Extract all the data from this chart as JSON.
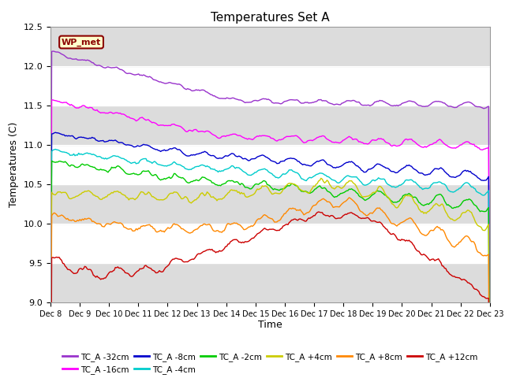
{
  "title": "Temperatures Set A",
  "xlabel": "Time",
  "ylabel": "Temperatures (C)",
  "ylim": [
    9.0,
    12.5
  ],
  "x_tick_labels": [
    "Dec 8",
    "Dec 9",
    "Dec 10",
    "Dec 11",
    "Dec 12",
    "Dec 13",
    "Dec 14",
    "Dec 15",
    "Dec 16",
    "Dec 17",
    "Dec 18",
    "Dec 19",
    "Dec 20",
    "Dec 21",
    "Dec 22",
    "Dec 23"
  ],
  "wp_met_label": "WP_met",
  "wp_met_color": "#8B0000",
  "wp_met_bg": "#FFFFCC",
  "series": [
    {
      "label": "TC_A -32cm",
      "color": "#9933CC"
    },
    {
      "label": "TC_A -16cm",
      "color": "#FF00FF"
    },
    {
      "label": "TC_A -8cm",
      "color": "#0000CC"
    },
    {
      "label": "TC_A -4cm",
      "color": "#00CCCC"
    },
    {
      "label": "TC_A -2cm",
      "color": "#00CC00"
    },
    {
      "label": "TC_A +4cm",
      "color": "#CCCC00"
    },
    {
      "label": "TC_A +8cm",
      "color": "#FF8800"
    },
    {
      "label": "TC_A +12cm",
      "color": "#CC0000"
    }
  ],
  "plot_bg": "#DCDCDC",
  "band_color_light": "#F0F0F0",
  "title_fontsize": 11,
  "tick_fontsize": 7,
  "label_fontsize": 9
}
